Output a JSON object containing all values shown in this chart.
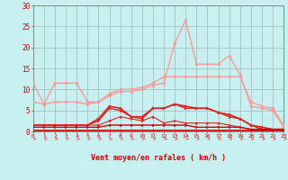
{
  "background_color": "#c8f0f0",
  "grid_color": "#a8c8c8",
  "xlabel": "Vent moyen/en rafales ( km/h )",
  "xlabel_color": "#cc0000",
  "ylabel_color": "#cc0000",
  "ylim": [
    0,
    30
  ],
  "xlim": [
    0,
    23
  ],
  "yticks": [
    0,
    5,
    10,
    15,
    20,
    25,
    30
  ],
  "xticks": [
    0,
    1,
    2,
    3,
    4,
    5,
    6,
    7,
    8,
    9,
    10,
    11,
    12,
    13,
    14,
    15,
    16,
    17,
    18,
    19,
    20,
    21,
    22,
    23
  ],
  "series": [
    {
      "x": [
        0,
        1,
        2,
        3,
        4,
        5,
        6,
        7,
        8,
        9,
        10,
        11,
        12,
        13,
        14,
        15,
        16,
        17,
        18,
        19,
        20,
        21,
        22,
        23
      ],
      "y": [
        11.5,
        6.5,
        11.5,
        11.5,
        11.5,
        7.0,
        7.0,
        9.0,
        10.0,
        10.0,
        10.5,
        11.5,
        13.0,
        13.0,
        13.0,
        13.0,
        13.0,
        13.0,
        13.0,
        13.0,
        7.0,
        6.0,
        5.5,
        1.5
      ],
      "color": "#ff9999",
      "lw": 1.0,
      "marker": "D",
      "ms": 1.8
    },
    {
      "x": [
        0,
        1,
        2,
        3,
        4,
        5,
        6,
        7,
        8,
        9,
        10,
        11,
        12,
        13,
        14,
        15,
        16,
        17,
        18,
        19,
        20,
        21,
        22,
        23
      ],
      "y": [
        7.0,
        6.5,
        7.0,
        7.0,
        7.0,
        6.5,
        7.0,
        8.5,
        9.5,
        9.5,
        10.0,
        11.0,
        11.5,
        21.0,
        26.5,
        16.0,
        16.0,
        16.0,
        18.0,
        13.5,
        6.0,
        5.5,
        5.0,
        1.0
      ],
      "color": "#ff9999",
      "lw": 1.0,
      "marker": "D",
      "ms": 1.8
    },
    {
      "x": [
        0,
        1,
        2,
        3,
        4,
        5,
        6,
        7,
        8,
        9,
        10,
        11,
        12,
        13,
        14,
        15,
        16,
        17,
        18,
        19,
        20,
        21,
        22,
        23
      ],
      "y": [
        1.5,
        1.5,
        1.5,
        1.5,
        1.5,
        1.5,
        3.0,
        6.0,
        5.5,
        3.5,
        3.5,
        5.5,
        5.5,
        6.5,
        6.0,
        5.5,
        5.5,
        4.5,
        4.0,
        3.0,
        1.5,
        1.0,
        0.5,
        0.5
      ],
      "color": "#dd2222",
      "lw": 1.2,
      "marker": ">",
      "ms": 2.2
    },
    {
      "x": [
        0,
        1,
        2,
        3,
        4,
        5,
        6,
        7,
        8,
        9,
        10,
        11,
        12,
        13,
        14,
        15,
        16,
        17,
        18,
        19,
        20,
        21,
        22,
        23
      ],
      "y": [
        1.5,
        1.5,
        1.5,
        1.5,
        1.5,
        1.5,
        2.5,
        5.5,
        5.0,
        3.5,
        3.0,
        5.5,
        5.5,
        6.5,
        5.5,
        5.5,
        5.5,
        4.5,
        3.5,
        3.0,
        1.5,
        0.5,
        0.5,
        0.5
      ],
      "color": "#dd2222",
      "lw": 1.0,
      "marker": ">",
      "ms": 2.0
    },
    {
      "x": [
        0,
        1,
        2,
        3,
        4,
        5,
        6,
        7,
        8,
        9,
        10,
        11,
        12,
        13,
        14,
        15,
        16,
        17,
        18,
        19,
        20,
        21,
        22,
        23
      ],
      "y": [
        1.5,
        1.5,
        1.5,
        1.5,
        1.5,
        1.5,
        1.5,
        2.5,
        3.5,
        3.0,
        2.5,
        3.5,
        2.0,
        2.5,
        2.0,
        2.0,
        2.0,
        2.0,
        1.5,
        1.0,
        0.5,
        0.5,
        0.5,
        0.5
      ],
      "color": "#dd2222",
      "lw": 0.8,
      "marker": ">",
      "ms": 1.8
    },
    {
      "x": [
        0,
        1,
        2,
        3,
        4,
        5,
        6,
        7,
        8,
        9,
        10,
        11,
        12,
        13,
        14,
        15,
        16,
        17,
        18,
        19,
        20,
        21,
        22,
        23
      ],
      "y": [
        1.0,
        1.0,
        1.0,
        1.0,
        1.0,
        1.0,
        1.0,
        1.5,
        1.5,
        1.5,
        1.5,
        1.5,
        1.5,
        1.5,
        1.5,
        1.0,
        1.0,
        1.0,
        1.0,
        1.0,
        0.5,
        0.5,
        0.5,
        0.5
      ],
      "color": "#cc0000",
      "lw": 1.0,
      "marker": ">",
      "ms": 1.8
    },
    {
      "x": [
        0,
        1,
        2,
        3,
        4,
        5,
        6,
        7,
        8,
        9,
        10,
        11,
        12,
        13,
        14,
        15,
        16,
        17,
        18,
        19,
        20,
        21,
        22,
        23
      ],
      "y": [
        0.2,
        0.2,
        0.2,
        0.2,
        0.2,
        0.2,
        0.2,
        0.2,
        0.2,
        0.2,
        0.2,
        0.2,
        0.2,
        0.2,
        0.2,
        0.2,
        0.2,
        0.2,
        0.2,
        0.2,
        0.2,
        0.2,
        0.2,
        0.2
      ],
      "color": "#cc0000",
      "lw": 1.2,
      "marker": null,
      "ms": 0
    }
  ],
  "arrow_color": "#ff6666",
  "spine_color": "#888888"
}
